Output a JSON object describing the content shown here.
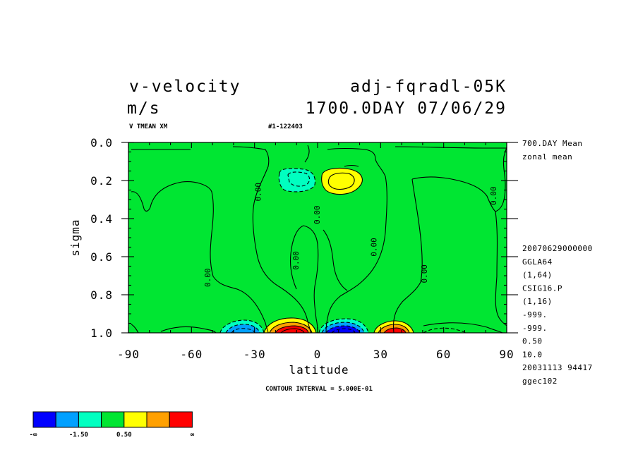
{
  "header": {
    "title_left": "v-velocity",
    "title_right": "adj-fqradl-05K",
    "units": "m/s",
    "run_info": "1700.0DAY 07/06/29",
    "sub_left": "V TMEAN XM",
    "sub_right": "#1-122403"
  },
  "side_info": {
    "top": [
      "700.DAY Mean",
      "zonal mean"
    ],
    "bottom": [
      "20070629000000",
      "GGLA64",
      "(1,64)",
      "CSIG16.P",
      "(1,16)",
      "-999.",
      "-999.",
      "0.50",
      "10.0",
      "20031113  94417",
      "ggec102"
    ]
  },
  "footer": {
    "contour_interval": "CONTOUR INTERVAL = 5.000E-01"
  },
  "colorbar": {
    "colors": [
      "#0000ff",
      "#00a0ff",
      "#00ffc0",
      "#00e632",
      "#ffff00",
      "#ffa000",
      "#ff0000"
    ],
    "labels": [
      "-∞",
      "-1.50",
      "0.50",
      "∞"
    ]
  },
  "chart_data": {
    "type": "contour",
    "xlabel": "latitude",
    "ylabel": "sigma",
    "xlim": [
      -90,
      90
    ],
    "ylim": [
      1.0,
      0.0
    ],
    "x_ticks": [
      -90,
      -60,
      -30,
      0,
      30,
      60,
      90
    ],
    "x_tick_labels": [
      "-90",
      "-60",
      "-30",
      "0",
      "30",
      "60",
      "90"
    ],
    "y_ticks": [
      0.0,
      0.2,
      0.4,
      0.6,
      0.8,
      1.0
    ],
    "y_tick_labels": [
      "0.0",
      "0.2",
      "0.4",
      "0.6",
      "0.8",
      "1.0"
    ],
    "contour_interval": 0.5,
    "background_color": "#00e632",
    "zero_contour_labels": [
      {
        "label": "0.00",
        "lat": -28,
        "sigma": 0.26
      },
      {
        "label": "0.00",
        "lat": 0,
        "sigma": 0.38
      },
      {
        "label": "0.00",
        "lat": -10,
        "sigma": 0.62
      },
      {
        "label": "0.00",
        "lat": 27,
        "sigma": 0.55
      },
      {
        "label": "0.00",
        "lat": -52,
        "sigma": 0.71
      },
      {
        "label": "0.00",
        "lat": 51,
        "sigma": 0.69
      },
      {
        "label": "0.00",
        "lat": 84,
        "sigma": 0.28
      }
    ],
    "features": [
      {
        "name": "upper negative cell",
        "lat": -11,
        "sigma": 0.2,
        "sign": "negative",
        "color": "#00ffc0"
      },
      {
        "name": "upper positive cell",
        "lat": 10,
        "sigma": 0.2,
        "sign": "positive",
        "color": "#ffff00"
      },
      {
        "name": "lower negative cell SH",
        "lat": -38,
        "sigma": 0.98,
        "sign": "negative",
        "color": "#00a0ff"
      },
      {
        "name": "lower positive cell SH",
        "lat": -12,
        "sigma": 0.98,
        "sign": "positive",
        "color": "#ff0000"
      },
      {
        "name": "lower negative cell NH",
        "lat": 12,
        "sigma": 0.98,
        "sign": "negative",
        "color": "#0000ff"
      },
      {
        "name": "lower positive cell NH",
        "lat": 37,
        "sigma": 0.98,
        "sign": "positive",
        "color": "#ff0000"
      }
    ]
  }
}
